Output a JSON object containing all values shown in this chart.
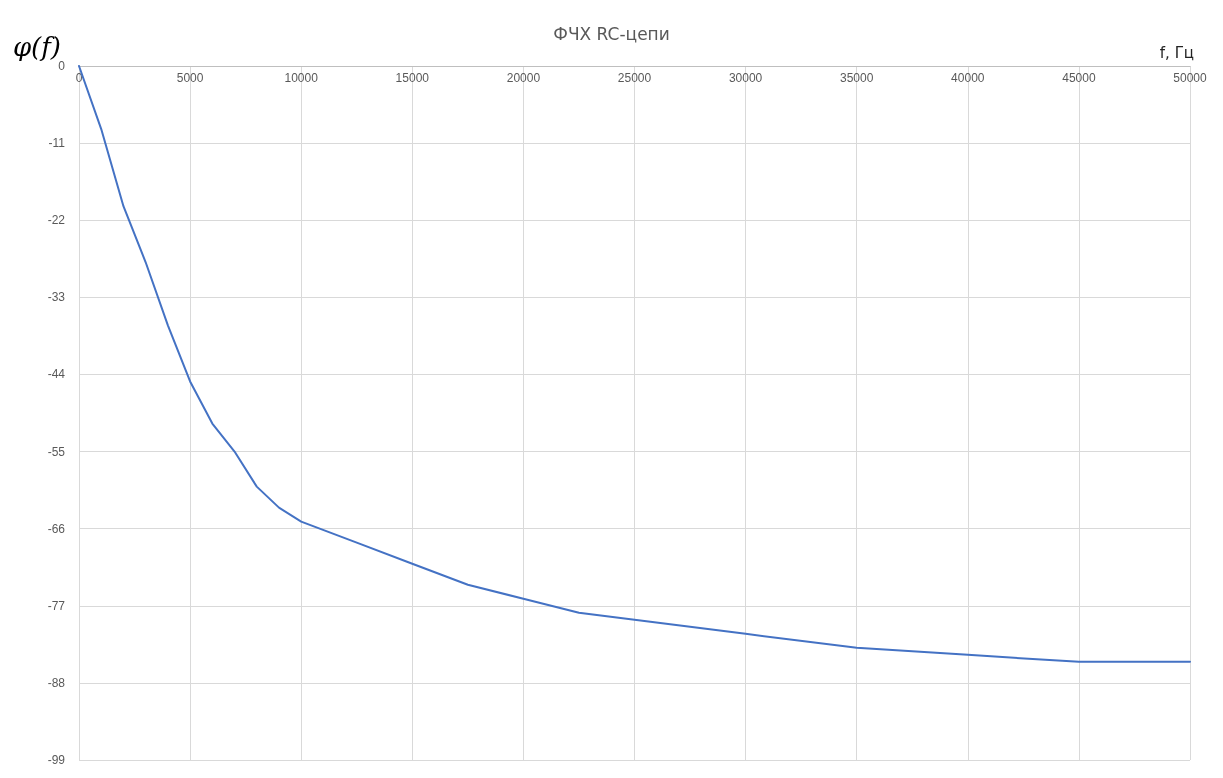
{
  "chart_data": {
    "type": "line",
    "title": "ФЧХ RC-цепи",
    "xlabel": "f, Гц",
    "ylabel": "φ(f)",
    "x": [
      0,
      1000,
      2000,
      3000,
      4000,
      5000,
      6000,
      7000,
      8000,
      9000,
      10000,
      12500,
      15000,
      17500,
      20000,
      22500,
      25000,
      30000,
      35000,
      40000,
      45000,
      50000
    ],
    "series": [
      {
        "color": "#4472c4",
        "values": [
          0,
          -9,
          -20,
          -28,
          -37,
          -45,
          -51,
          -55,
          -60,
          -63,
          -65,
          -68,
          -71,
          -74,
          -76,
          -78,
          -79,
          -81,
          -83,
          -84,
          -85,
          -85
        ]
      }
    ],
    "xlim": [
      0,
      50000
    ],
    "xticks": [
      0,
      5000,
      10000,
      15000,
      20000,
      25000,
      30000,
      35000,
      40000,
      45000,
      50000
    ],
    "ylim": [
      -99,
      0
    ],
    "yticks": [
      0,
      -11,
      -22,
      -33,
      -44,
      -55,
      -66,
      -77,
      -88,
      -99
    ],
    "grid": true,
    "marker": "none",
    "line_style": "solid"
  }
}
